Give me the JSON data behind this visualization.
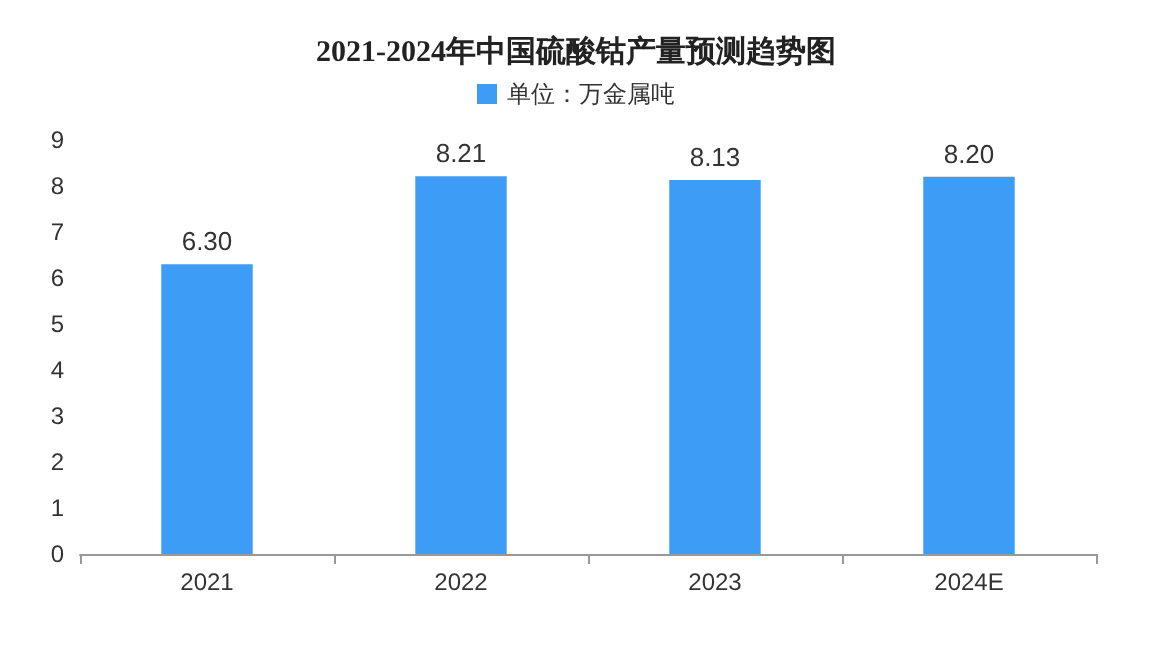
{
  "chart_data": {
    "type": "bar",
    "title": "2021-2024年中国硫酸钴产量预测趋势图",
    "categories": [
      "2021",
      "2022",
      "2023",
      "2024E"
    ],
    "series": [
      {
        "name": "单位：万金属吨",
        "color": "#3d9cf5",
        "values": [
          6.3,
          8.21,
          8.13,
          8.2
        ]
      }
    ],
    "value_labels": [
      "6.30",
      "8.21",
      "8.13",
      "8.20"
    ],
    "ylim": [
      0,
      9
    ],
    "yticks": [
      0,
      1,
      2,
      3,
      4,
      5,
      6,
      7,
      8,
      9
    ],
    "grid": false,
    "legend": "top"
  }
}
